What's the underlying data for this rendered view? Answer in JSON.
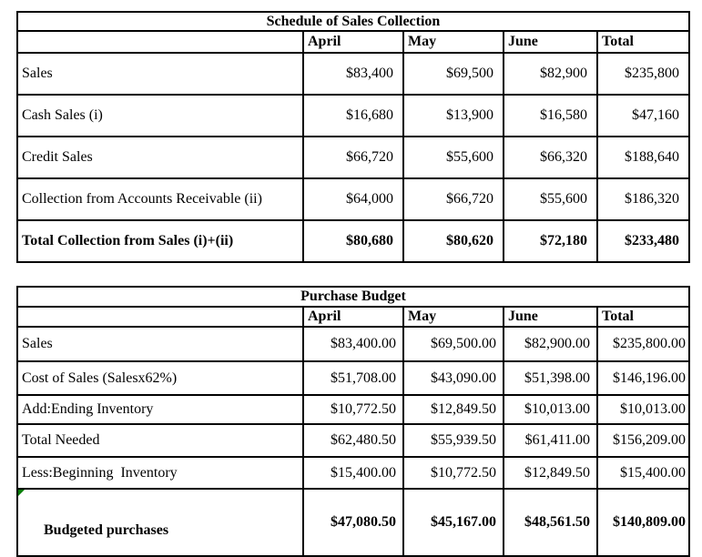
{
  "colors": {
    "border": "#000000",
    "text": "#000000",
    "bg": "#ffffff",
    "marker": "#0b7d0b"
  },
  "sales_collection": {
    "title": "Schedule of Sales Collection",
    "columns": [
      "April",
      "May",
      "June",
      "Total"
    ],
    "rows": [
      {
        "label": "Sales",
        "values": [
          "$83,400",
          "$69,500",
          "$82,900",
          "$235,800"
        ]
      },
      {
        "label": "Cash Sales (i)",
        "values": [
          "$16,680",
          "$13,900",
          "$16,580",
          "$47,160"
        ]
      },
      {
        "label": "Credit Sales",
        "values": [
          "$66,720",
          "$55,600",
          "$66,320",
          "$188,640"
        ]
      },
      {
        "label": "Collection from Accounts Receivable (ii)",
        "values": [
          "$64,000",
          "$66,720",
          "$55,600",
          "$186,320"
        ]
      },
      {
        "label": "Total Collection from Sales (i)+(ii)",
        "values": [
          "$80,680",
          "$80,620",
          "$72,180",
          "$233,480"
        ],
        "bold": true
      }
    ]
  },
  "purchase_budget": {
    "title": "Purchase Budget",
    "columns": [
      "April",
      "May",
      "June",
      "Total"
    ],
    "rows": [
      {
        "label": "Sales",
        "values": [
          "$83,400.00",
          "$69,500.00",
          "$82,900.00",
          "$235,800.00"
        ]
      },
      {
        "label": "Cost of Sales (Salesx62%)",
        "values": [
          "$51,708.00",
          "$43,090.00",
          "$51,398.00",
          "$146,196.00"
        ]
      },
      {
        "label": "Add:Ending Inventory",
        "values": [
          "$10,772.50",
          "$12,849.50",
          "$10,013.00",
          "$10,013.00"
        ]
      },
      {
        "label": "Total Needed",
        "values": [
          "$62,480.50",
          "$55,939.50",
          "$61,411.00",
          "$156,209.00"
        ]
      },
      {
        "label": "Less:Beginning  Inventory",
        "values": [
          "$15,400.00",
          "$10,772.50",
          "$12,849.50",
          "$15,400.00"
        ]
      },
      {
        "label": "Budgeted purchases",
        "values": [
          "$47,080.50",
          "$45,167.00",
          "$48,561.50",
          "$140,809.00"
        ],
        "bold": true,
        "marker": "green-triangle-top-left"
      }
    ]
  }
}
